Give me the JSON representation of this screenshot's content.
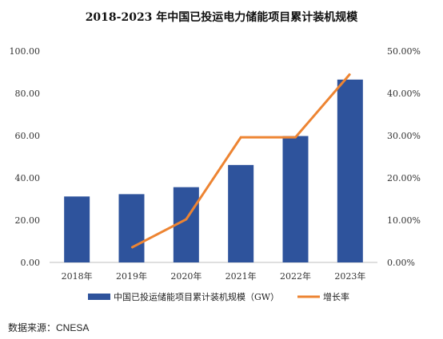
{
  "chart_data": {
    "type": "bar",
    "title": "2018-2023 年中国已投运电力储能项目累计装机规模",
    "categories": [
      "2018年",
      "2019年",
      "2020年",
      "2021年",
      "2022年",
      "2023年"
    ],
    "series": [
      {
        "name": "中国已投运储能项目累计装机规模（GW）",
        "type": "bar",
        "axis": "left",
        "values": [
          31.2,
          32.3,
          35.6,
          46.1,
          59.8,
          86.5
        ],
        "color": "#2E539C"
      },
      {
        "name": "增长率",
        "type": "line",
        "axis": "right",
        "values": [
          null,
          3.5,
          10.2,
          29.6,
          29.6,
          44.6
        ],
        "color": "#ED8432"
      }
    ],
    "y_left": {
      "ylim": [
        0,
        100
      ],
      "ticks": [
        "0.00",
        "20.00",
        "40.00",
        "60.00",
        "80.00",
        "100.00"
      ]
    },
    "y_right": {
      "ylim": [
        0,
        50
      ],
      "ticks": [
        "0.00%",
        "10.00%",
        "20.00%",
        "30.00%",
        "40.00%",
        "50.00%"
      ]
    },
    "xlabel": "",
    "ylabel": "",
    "grid": false,
    "legend_position": "bottom"
  },
  "source": "数据来源：CNESA"
}
